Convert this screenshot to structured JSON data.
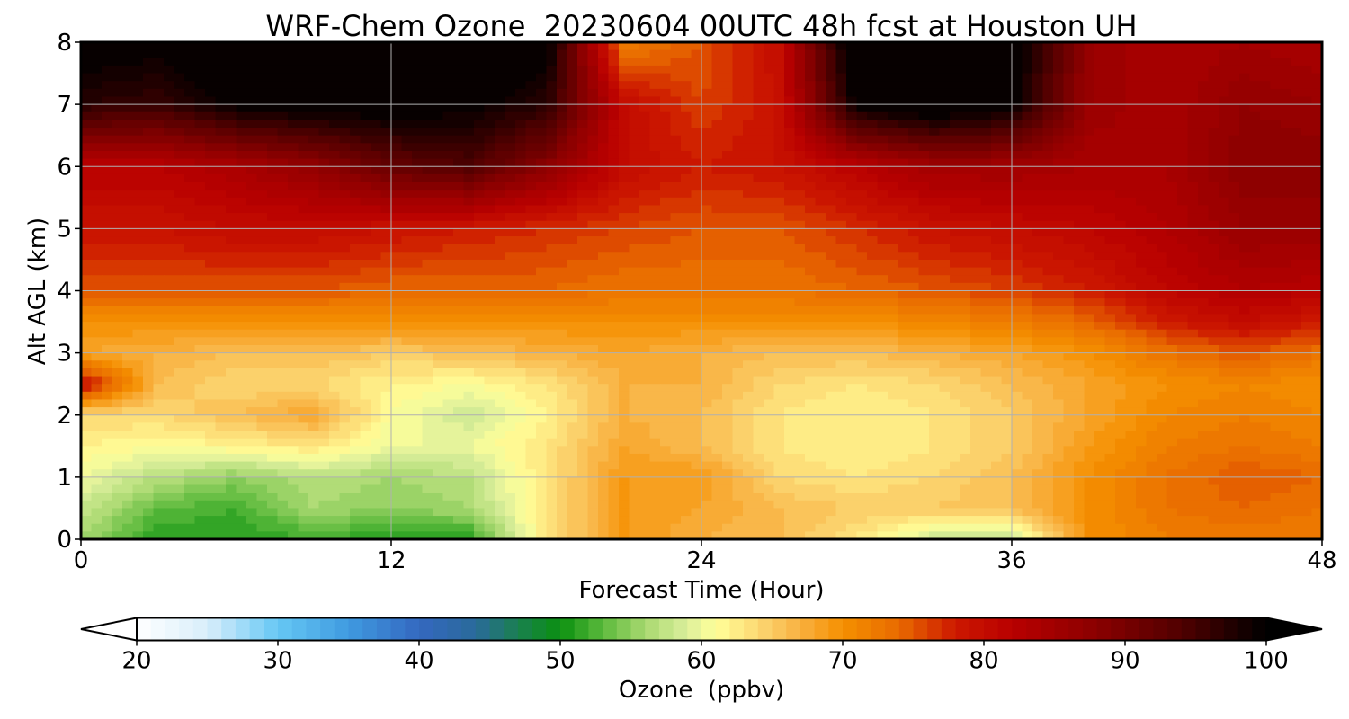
{
  "chart_data": {
    "type": "heatmap",
    "title": "WRF-Chem Ozone  20230604 00UTC 48h fcst at Houston UH",
    "xlabel": "Forecast Time (Hour)",
    "ylabel": "Alt AGL (km)",
    "xlim": [
      0,
      48
    ],
    "ylim": [
      0,
      8
    ],
    "x_ticks": [
      0,
      12,
      24,
      36,
      48
    ],
    "y_ticks": [
      0,
      1,
      2,
      3,
      4,
      5,
      6,
      7,
      8
    ],
    "grid": true,
    "x": [
      0,
      3,
      6,
      9,
      12,
      15,
      18,
      21,
      24,
      27,
      30,
      33,
      36,
      39,
      42,
      45,
      48
    ],
    "y": [
      0,
      0.5,
      1,
      1.5,
      2,
      2.5,
      3,
      3.5,
      4,
      5,
      6,
      7,
      8
    ],
    "values": [
      [
        56,
        51,
        51,
        52,
        51,
        51,
        63,
        69,
        67,
        66,
        63,
        58,
        58,
        70,
        72,
        72,
        72
      ],
      [
        58,
        53,
        52,
        56,
        55,
        56,
        63,
        69,
        68,
        66,
        65,
        65,
        66,
        70,
        73,
        74,
        73
      ],
      [
        60,
        57,
        55,
        57,
        56,
        57,
        63,
        69,
        69,
        64,
        63,
        64,
        66,
        70,
        73,
        75,
        74
      ],
      [
        62,
        61,
        62,
        63,
        60,
        60,
        63,
        68,
        66,
        63,
        62,
        63,
        65,
        69,
        72,
        73,
        72
      ],
      [
        64,
        64,
        66,
        68,
        61,
        58,
        62,
        67,
        66,
        63,
        62,
        63,
        65,
        68,
        71,
        72,
        71
      ],
      [
        80,
        66,
        64,
        64,
        62,
        61,
        63,
        67,
        67,
        64,
        63,
        64,
        66,
        68,
        70,
        71,
        70
      ],
      [
        68,
        67,
        66,
        66,
        65,
        66,
        67,
        68,
        67,
        66,
        66,
        67,
        68,
        70,
        73,
        75,
        73
      ],
      [
        70,
        70,
        70,
        70,
        70,
        70,
        70,
        70,
        70,
        70,
        70,
        71,
        72,
        74,
        78,
        80,
        78
      ],
      [
        75,
        75,
        75,
        75,
        74,
        74,
        74,
        73,
        73,
        73,
        74,
        75,
        76,
        78,
        81,
        83,
        82
      ],
      [
        79,
        79,
        80,
        80,
        79,
        78,
        77,
        76,
        75,
        75,
        77,
        79,
        80,
        81,
        83,
        86,
        86
      ],
      [
        82,
        82,
        84,
        87,
        92,
        94,
        88,
        80,
        78,
        79,
        82,
        85,
        85,
        84,
        84,
        88,
        88
      ],
      [
        97,
        96,
        100,
        101,
        101,
        100,
        97,
        80,
        76,
        79,
        100,
        103,
        100,
        86,
        84,
        87,
        86
      ],
      [
        101,
        100,
        102,
        103,
        104,
        103,
        101,
        72,
        75,
        80,
        103,
        104,
        102,
        86,
        84,
        85,
        84
      ]
    ],
    "colorbar": {
      "label": "Ozone  (ppbv)",
      "min": 20,
      "max": 100,
      "step": 1,
      "extend": "both",
      "ticks": [
        20,
        30,
        40,
        50,
        60,
        70,
        80,
        90,
        100
      ],
      "anchors": [
        {
          "value": 20,
          "color": "#ffffff"
        },
        {
          "value": 25,
          "color": "#d8eefb"
        },
        {
          "value": 30,
          "color": "#66c7f4"
        },
        {
          "value": 35,
          "color": "#3f9ae0"
        },
        {
          "value": 40,
          "color": "#3468c0"
        },
        {
          "value": 44,
          "color": "#2a6a9a"
        },
        {
          "value": 47,
          "color": "#1a8050"
        },
        {
          "value": 50,
          "color": "#0a9010"
        },
        {
          "value": 53,
          "color": "#5cba3c"
        },
        {
          "value": 56,
          "color": "#a8d870"
        },
        {
          "value": 59,
          "color": "#dcef9c"
        },
        {
          "value": 61,
          "color": "#ffff99"
        },
        {
          "value": 64,
          "color": "#fcd873"
        },
        {
          "value": 67,
          "color": "#f8b040"
        },
        {
          "value": 70,
          "color": "#f59000"
        },
        {
          "value": 74,
          "color": "#e86a00"
        },
        {
          "value": 78,
          "color": "#cc1800"
        },
        {
          "value": 82,
          "color": "#b80000"
        },
        {
          "value": 88,
          "color": "#8a0000"
        },
        {
          "value": 94,
          "color": "#500000"
        },
        {
          "value": 100,
          "color": "#000000"
        }
      ]
    }
  }
}
